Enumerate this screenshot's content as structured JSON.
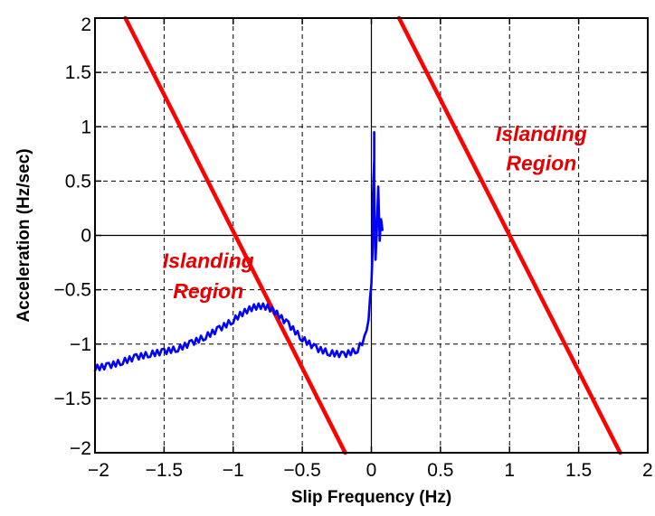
{
  "chart_data": {
    "type": "line",
    "title": "",
    "xlabel": "Slip Frequency (Hz)",
    "ylabel": "Acceleration (Hz/sec)",
    "xlim": [
      -2,
      2
    ],
    "ylim": [
      -2,
      2
    ],
    "xticks": [
      -2,
      -1.5,
      -1,
      -0.5,
      0,
      0.5,
      1,
      1.5,
      2
    ],
    "yticks": [
      -2,
      -1.5,
      -1,
      -0.5,
      0,
      0.5,
      1,
      1.5,
      2
    ],
    "xtick_labels": [
      "−2",
      "−1.5",
      "−1",
      "−0.5",
      "0",
      "0.5",
      "1",
      "1.5",
      "2"
    ],
    "ytick_labels": [
      "−2",
      "−1.5",
      "−1",
      "−0.5",
      "0",
      "0.5",
      "1",
      "1.5",
      "2"
    ],
    "grid": true,
    "series": [
      {
        "color": "#ff0000",
        "points": [
          [
            -1.78,
            2
          ],
          [
            -0.19,
            -2
          ]
        ]
      },
      {
        "color": "#ff0000",
        "points": [
          [
            0.2,
            2
          ],
          [
            1.8,
            -2
          ]
        ]
      },
      {
        "color": "#0000ff",
        "points": [
          [
            -2.0,
            -1.22
          ],
          [
            -1.9,
            -1.2
          ],
          [
            -1.8,
            -1.16
          ],
          [
            -1.7,
            -1.12
          ],
          [
            -1.6,
            -1.09
          ],
          [
            -1.5,
            -1.07
          ],
          [
            -1.4,
            -1.04
          ],
          [
            -1.3,
            -0.99
          ],
          [
            -1.2,
            -0.93
          ],
          [
            -1.1,
            -0.86
          ],
          [
            -1.0,
            -0.78
          ],
          [
            -0.95,
            -0.73
          ],
          [
            -0.9,
            -0.69
          ],
          [
            -0.85,
            -0.66
          ],
          [
            -0.8,
            -0.65
          ],
          [
            -0.75,
            -0.66
          ],
          [
            -0.7,
            -0.7
          ],
          [
            -0.6,
            -0.82
          ],
          [
            -0.5,
            -0.95
          ],
          [
            -0.4,
            -1.04
          ],
          [
            -0.3,
            -1.08
          ],
          [
            -0.2,
            -1.1
          ],
          [
            -0.1,
            -1.05
          ],
          [
            -0.05,
            -0.95
          ],
          [
            -0.02,
            -0.75
          ],
          [
            0.0,
            -0.45
          ],
          [
            0.01,
            -0.1
          ],
          [
            0.01,
            0.3
          ],
          [
            0.02,
            0.7
          ],
          [
            0.02,
            0.95
          ],
          [
            0.02,
            0.45
          ],
          [
            0.03,
            -0.25
          ],
          [
            0.05,
            0.45
          ],
          [
            0.06,
            -0.05
          ],
          [
            0.07,
            0.15
          ],
          [
            0.08,
            0.05
          ]
        ]
      }
    ],
    "annotations": [
      {
        "text": "Islanding",
        "x": -1.18,
        "y": -0.3,
        "color": "#e60000"
      },
      {
        "text": "Region",
        "x": -1.18,
        "y": -0.58,
        "color": "#e60000"
      },
      {
        "text": "Islanding",
        "x": 1.23,
        "y": 0.87,
        "color": "#e60000"
      },
      {
        "text": "Region",
        "x": 1.23,
        "y": 0.6,
        "color": "#e60000"
      }
    ]
  }
}
